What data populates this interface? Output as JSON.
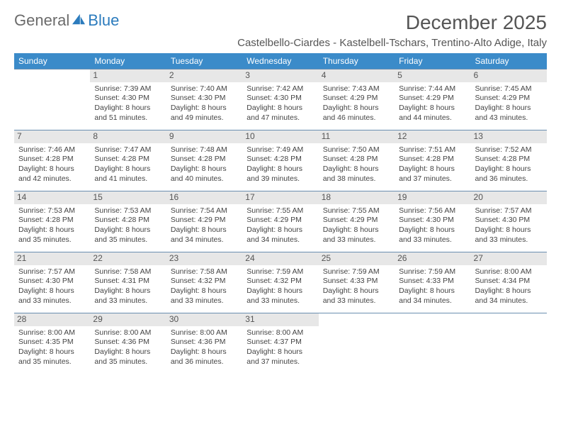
{
  "brand": {
    "part1": "General",
    "part2": "Blue"
  },
  "title": "December 2025",
  "subtitle": "Castelbello-Ciardes - Kastelbell-Tschars, Trentino-Alto Adige, Italy",
  "colors": {
    "header_bg": "#3b8bc9",
    "header_text": "#ffffff",
    "border": "#6a8fb0",
    "daynum_bg": "#e7e7e7",
    "text": "#444444",
    "brand_gray": "#6b6b6b",
    "brand_blue": "#2b7bbd"
  },
  "weekdays": [
    "Sunday",
    "Monday",
    "Tuesday",
    "Wednesday",
    "Thursday",
    "Friday",
    "Saturday"
  ],
  "weeks": [
    [
      null,
      {
        "n": "1",
        "sr": "Sunrise: 7:39 AM",
        "ss": "Sunset: 4:30 PM",
        "d1": "Daylight: 8 hours",
        "d2": "and 51 minutes."
      },
      {
        "n": "2",
        "sr": "Sunrise: 7:40 AM",
        "ss": "Sunset: 4:30 PM",
        "d1": "Daylight: 8 hours",
        "d2": "and 49 minutes."
      },
      {
        "n": "3",
        "sr": "Sunrise: 7:42 AM",
        "ss": "Sunset: 4:30 PM",
        "d1": "Daylight: 8 hours",
        "d2": "and 47 minutes."
      },
      {
        "n": "4",
        "sr": "Sunrise: 7:43 AM",
        "ss": "Sunset: 4:29 PM",
        "d1": "Daylight: 8 hours",
        "d2": "and 46 minutes."
      },
      {
        "n": "5",
        "sr": "Sunrise: 7:44 AM",
        "ss": "Sunset: 4:29 PM",
        "d1": "Daylight: 8 hours",
        "d2": "and 44 minutes."
      },
      {
        "n": "6",
        "sr": "Sunrise: 7:45 AM",
        "ss": "Sunset: 4:29 PM",
        "d1": "Daylight: 8 hours",
        "d2": "and 43 minutes."
      }
    ],
    [
      {
        "n": "7",
        "sr": "Sunrise: 7:46 AM",
        "ss": "Sunset: 4:28 PM",
        "d1": "Daylight: 8 hours",
        "d2": "and 42 minutes."
      },
      {
        "n": "8",
        "sr": "Sunrise: 7:47 AM",
        "ss": "Sunset: 4:28 PM",
        "d1": "Daylight: 8 hours",
        "d2": "and 41 minutes."
      },
      {
        "n": "9",
        "sr": "Sunrise: 7:48 AM",
        "ss": "Sunset: 4:28 PM",
        "d1": "Daylight: 8 hours",
        "d2": "and 40 minutes."
      },
      {
        "n": "10",
        "sr": "Sunrise: 7:49 AM",
        "ss": "Sunset: 4:28 PM",
        "d1": "Daylight: 8 hours",
        "d2": "and 39 minutes."
      },
      {
        "n": "11",
        "sr": "Sunrise: 7:50 AM",
        "ss": "Sunset: 4:28 PM",
        "d1": "Daylight: 8 hours",
        "d2": "and 38 minutes."
      },
      {
        "n": "12",
        "sr": "Sunrise: 7:51 AM",
        "ss": "Sunset: 4:28 PM",
        "d1": "Daylight: 8 hours",
        "d2": "and 37 minutes."
      },
      {
        "n": "13",
        "sr": "Sunrise: 7:52 AM",
        "ss": "Sunset: 4:28 PM",
        "d1": "Daylight: 8 hours",
        "d2": "and 36 minutes."
      }
    ],
    [
      {
        "n": "14",
        "sr": "Sunrise: 7:53 AM",
        "ss": "Sunset: 4:28 PM",
        "d1": "Daylight: 8 hours",
        "d2": "and 35 minutes."
      },
      {
        "n": "15",
        "sr": "Sunrise: 7:53 AM",
        "ss": "Sunset: 4:28 PM",
        "d1": "Daylight: 8 hours",
        "d2": "and 35 minutes."
      },
      {
        "n": "16",
        "sr": "Sunrise: 7:54 AM",
        "ss": "Sunset: 4:29 PM",
        "d1": "Daylight: 8 hours",
        "d2": "and 34 minutes."
      },
      {
        "n": "17",
        "sr": "Sunrise: 7:55 AM",
        "ss": "Sunset: 4:29 PM",
        "d1": "Daylight: 8 hours",
        "d2": "and 34 minutes."
      },
      {
        "n": "18",
        "sr": "Sunrise: 7:55 AM",
        "ss": "Sunset: 4:29 PM",
        "d1": "Daylight: 8 hours",
        "d2": "and 33 minutes."
      },
      {
        "n": "19",
        "sr": "Sunrise: 7:56 AM",
        "ss": "Sunset: 4:30 PM",
        "d1": "Daylight: 8 hours",
        "d2": "and 33 minutes."
      },
      {
        "n": "20",
        "sr": "Sunrise: 7:57 AM",
        "ss": "Sunset: 4:30 PM",
        "d1": "Daylight: 8 hours",
        "d2": "and 33 minutes."
      }
    ],
    [
      {
        "n": "21",
        "sr": "Sunrise: 7:57 AM",
        "ss": "Sunset: 4:30 PM",
        "d1": "Daylight: 8 hours",
        "d2": "and 33 minutes."
      },
      {
        "n": "22",
        "sr": "Sunrise: 7:58 AM",
        "ss": "Sunset: 4:31 PM",
        "d1": "Daylight: 8 hours",
        "d2": "and 33 minutes."
      },
      {
        "n": "23",
        "sr": "Sunrise: 7:58 AM",
        "ss": "Sunset: 4:32 PM",
        "d1": "Daylight: 8 hours",
        "d2": "and 33 minutes."
      },
      {
        "n": "24",
        "sr": "Sunrise: 7:59 AM",
        "ss": "Sunset: 4:32 PM",
        "d1": "Daylight: 8 hours",
        "d2": "and 33 minutes."
      },
      {
        "n": "25",
        "sr": "Sunrise: 7:59 AM",
        "ss": "Sunset: 4:33 PM",
        "d1": "Daylight: 8 hours",
        "d2": "and 33 minutes."
      },
      {
        "n": "26",
        "sr": "Sunrise: 7:59 AM",
        "ss": "Sunset: 4:33 PM",
        "d1": "Daylight: 8 hours",
        "d2": "and 34 minutes."
      },
      {
        "n": "27",
        "sr": "Sunrise: 8:00 AM",
        "ss": "Sunset: 4:34 PM",
        "d1": "Daylight: 8 hours",
        "d2": "and 34 minutes."
      }
    ],
    [
      {
        "n": "28",
        "sr": "Sunrise: 8:00 AM",
        "ss": "Sunset: 4:35 PM",
        "d1": "Daylight: 8 hours",
        "d2": "and 35 minutes."
      },
      {
        "n": "29",
        "sr": "Sunrise: 8:00 AM",
        "ss": "Sunset: 4:36 PM",
        "d1": "Daylight: 8 hours",
        "d2": "and 35 minutes."
      },
      {
        "n": "30",
        "sr": "Sunrise: 8:00 AM",
        "ss": "Sunset: 4:36 PM",
        "d1": "Daylight: 8 hours",
        "d2": "and 36 minutes."
      },
      {
        "n": "31",
        "sr": "Sunrise: 8:00 AM",
        "ss": "Sunset: 4:37 PM",
        "d1": "Daylight: 8 hours",
        "d2": "and 37 minutes."
      },
      null,
      null,
      null
    ]
  ]
}
